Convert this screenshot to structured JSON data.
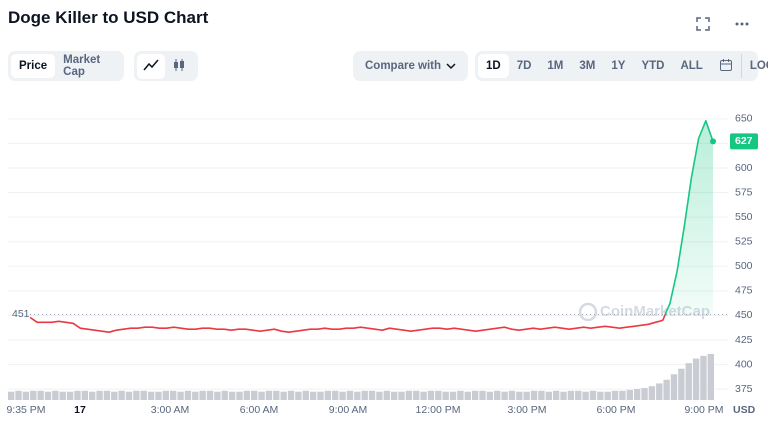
{
  "header": {
    "title": "Doge Killer to USD Chart"
  },
  "toolbar": {
    "tabs": [
      "Price",
      "Market Cap"
    ],
    "compare": "Compare with",
    "ranges": [
      "1D",
      "7D",
      "1M",
      "3M",
      "1Y",
      "YTD",
      "ALL"
    ],
    "log": "LOG"
  },
  "chart_data": {
    "type": "line",
    "watermark": "CoinMarketCap",
    "currency": "USD",
    "xtick_labels": [
      "9:35 PM",
      "17",
      "3:00 AM",
      "6:00 AM",
      "9:00 AM",
      "12:00 PM",
      "3:00 PM",
      "6:00 PM",
      "9:00 PM"
    ],
    "reference_price": 451,
    "up_color": "#16c784",
    "down_color": "#ea3943",
    "ylim": [
      364,
      661
    ],
    "yticks": [
      375,
      400,
      425,
      450,
      475,
      500,
      525,
      550,
      575,
      600,
      625,
      650
    ],
    "grid": true,
    "series": [
      {
        "values": [
          448,
          443,
          443,
          443,
          444,
          443,
          442,
          437,
          436,
          435,
          434,
          433,
          435,
          436,
          437,
          437,
          438,
          438,
          437,
          437,
          438,
          437,
          436,
          436,
          437,
          437,
          436,
          436,
          435,
          436,
          436,
          435,
          434,
          435,
          436,
          434,
          433,
          434,
          435,
          436,
          436,
          437,
          436,
          436,
          437,
          437,
          438,
          437,
          436,
          435,
          437,
          436,
          435,
          434,
          435,
          436,
          437,
          437,
          436,
          437,
          436,
          435,
          434,
          435,
          436,
          437,
          438,
          436,
          435,
          436,
          437,
          436,
          437,
          438,
          437,
          436,
          437,
          438,
          437,
          438,
          439,
          438,
          437,
          438,
          439,
          440,
          441,
          443,
          445,
          462,
          495,
          540,
          590,
          630,
          648,
          627
        ]
      }
    ],
    "volume": {
      "color": "#c9ccd3",
      "values": [
        9,
        10,
        9,
        10,
        10,
        9,
        10,
        9,
        9,
        10,
        10,
        9,
        10,
        10,
        9,
        10,
        9,
        10,
        10,
        9,
        9,
        10,
        10,
        9,
        10,
        9,
        10,
        10,
        9,
        10,
        9,
        9,
        10,
        10,
        9,
        10,
        10,
        9,
        10,
        9,
        10,
        9,
        9,
        10,
        10,
        9,
        10,
        9,
        10,
        10,
        9,
        10,
        9,
        9,
        10,
        10,
        9,
        10,
        10,
        9,
        9,
        10,
        9,
        10,
        10,
        9,
        10,
        9,
        10,
        9,
        9,
        10,
        10,
        9,
        10,
        9,
        10,
        10,
        9,
        10,
        9,
        9,
        10,
        10,
        11,
        12,
        13,
        15,
        18,
        22,
        28,
        34,
        40,
        45,
        48,
        50
      ]
    }
  }
}
